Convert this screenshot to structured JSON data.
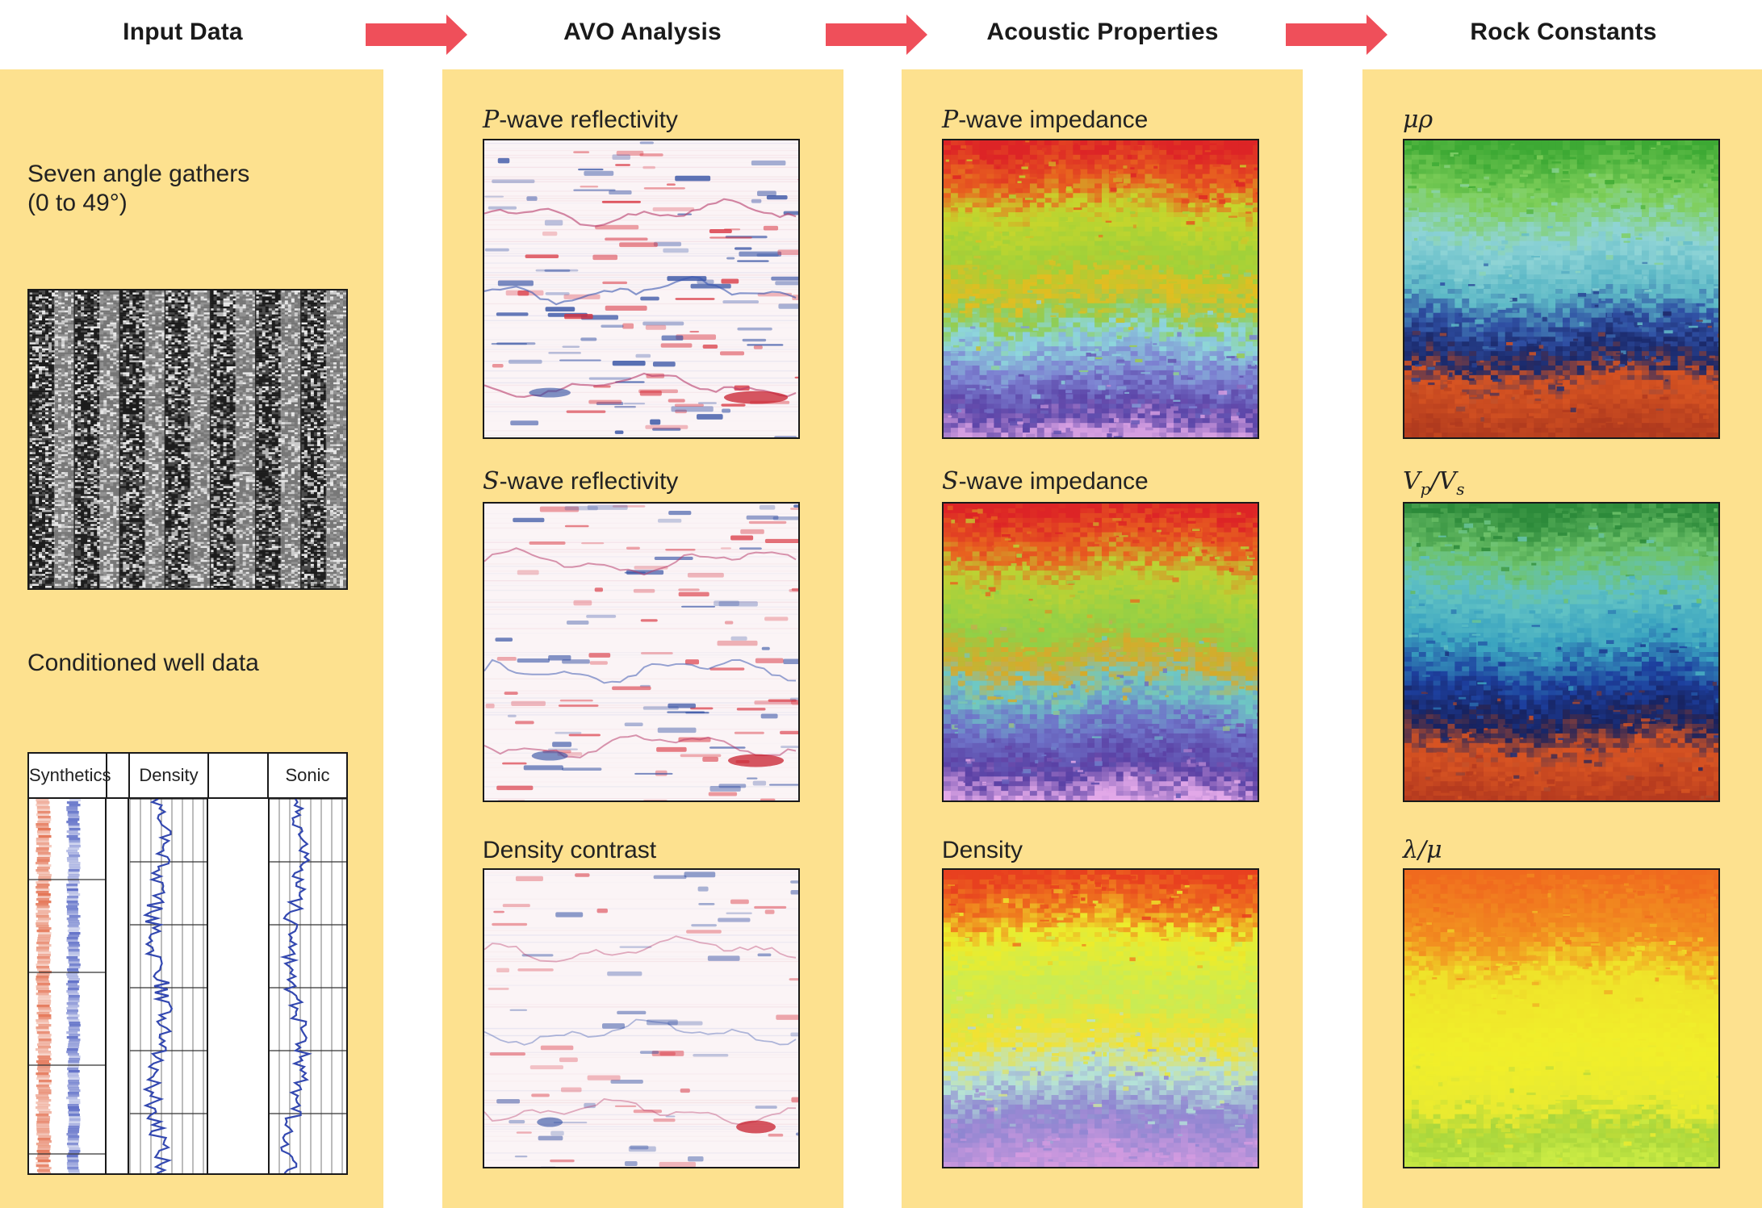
{
  "headers": {
    "input": "Input Data",
    "avo": "AVO Analysis",
    "acoustic": "Acoustic Properties",
    "rock": "Rock Constants"
  },
  "input": {
    "gathers_label_line1": "Seven angle gathers",
    "gathers_label_line2": "(0 to 49°)",
    "well_label": "Conditioned well data",
    "well_tracks": [
      "Synthetics",
      "",
      "Density",
      "",
      "Sonic"
    ]
  },
  "avo": {
    "p_reflectivity": {
      "prefix": "P",
      "suffix": "-wave reflectivity"
    },
    "s_reflectivity": {
      "prefix": "S",
      "suffix": "-wave reflectivity"
    },
    "density_contrast": "Density contrast"
  },
  "acoustic": {
    "p_impedance": {
      "prefix": "P",
      "suffix": "-wave impedance"
    },
    "s_impedance": {
      "prefix": "S",
      "suffix": "-wave impedance"
    },
    "density": "Density"
  },
  "rock": {
    "mu_rho": "μρ",
    "vp_vs": {
      "v1": "V",
      "sub1": "p",
      "slash": "/",
      "v2": "V",
      "sub2": "s"
    },
    "lambda_mu": "λ/μ"
  },
  "colors": {
    "background": "#fde18f",
    "arrow": "#ef4f5a",
    "reflectivity_red": "#d8303c",
    "reflectivity_blue": "#2c4aa0"
  }
}
